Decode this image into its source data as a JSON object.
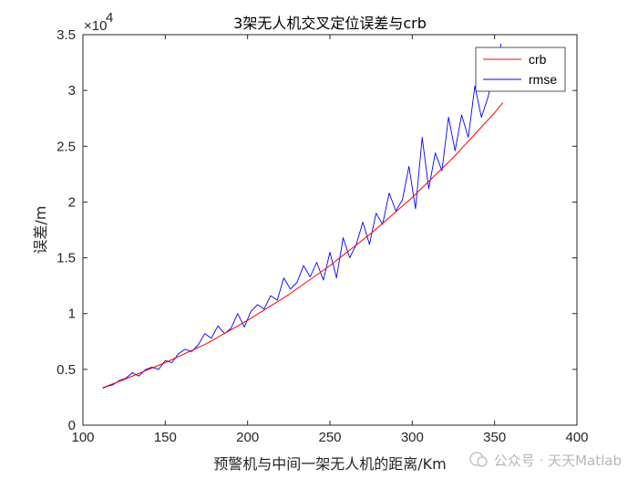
{
  "chart_data": {
    "type": "line",
    "title": "3架无人机交叉定位误差与crb",
    "xlabel": "预警机与中间一架无人机的距离/Km",
    "ylabel": "误差/m",
    "xlim": [
      100,
      400
    ],
    "ylim": [
      0,
      35000
    ],
    "xticks": [
      "100",
      "150",
      "200",
      "250",
      "300",
      "350",
      "400"
    ],
    "yticks": [
      "0",
      "0.5",
      "1",
      "1.5",
      "2",
      "2.5",
      "3",
      "3.5"
    ],
    "y_exponent_label": "×10",
    "y_exponent_power": "4",
    "legend_position": "top-right",
    "grid": false,
    "series": [
      {
        "name": "crb",
        "color": "#ff0000",
        "x": [
          112,
          125,
          150,
          175,
          200,
          225,
          250,
          275,
          300,
          325,
          350,
          355
        ],
        "y": [
          3350,
          4100,
          5600,
          7300,
          9400,
          11700,
          14300,
          17200,
          20400,
          24000,
          28000,
          28900
        ]
      },
      {
        "name": "rmse",
        "color": "#0000ff",
        "x": [
          112,
          115,
          118,
          122,
          126,
          130,
          134,
          138,
          142,
          146,
          150,
          154,
          158,
          162,
          166,
          170,
          174,
          178,
          182,
          186,
          190,
          194,
          198,
          202,
          206,
          210,
          214,
          218,
          222,
          226,
          230,
          234,
          238,
          242,
          246,
          250,
          254,
          258,
          262,
          266,
          270,
          274,
          278,
          282,
          286,
          290,
          294,
          298,
          302,
          306,
          310,
          314,
          318,
          322,
          326,
          330,
          334,
          338,
          342,
          346,
          350,
          354
        ],
        "y": [
          3300,
          3500,
          3600,
          4000,
          4200,
          4700,
          4400,
          5000,
          5200,
          5000,
          5800,
          5600,
          6400,
          6800,
          6600,
          7200,
          8200,
          7800,
          8900,
          8200,
          8700,
          10000,
          8800,
          10200,
          10800,
          10400,
          11600,
          11200,
          13200,
          12200,
          12800,
          14300,
          13300,
          14600,
          13000,
          15500,
          13200,
          16800,
          15000,
          16200,
          18200,
          16200,
          19000,
          18000,
          20800,
          19200,
          20200,
          23200,
          19400,
          25800,
          21200,
          24400,
          22800,
          27600,
          24600,
          27800,
          25800,
          30400,
          27600,
          29400,
          31800,
          34200
        ]
      }
    ]
  },
  "watermark": {
    "text": "公众号 · 天天Matlab"
  }
}
